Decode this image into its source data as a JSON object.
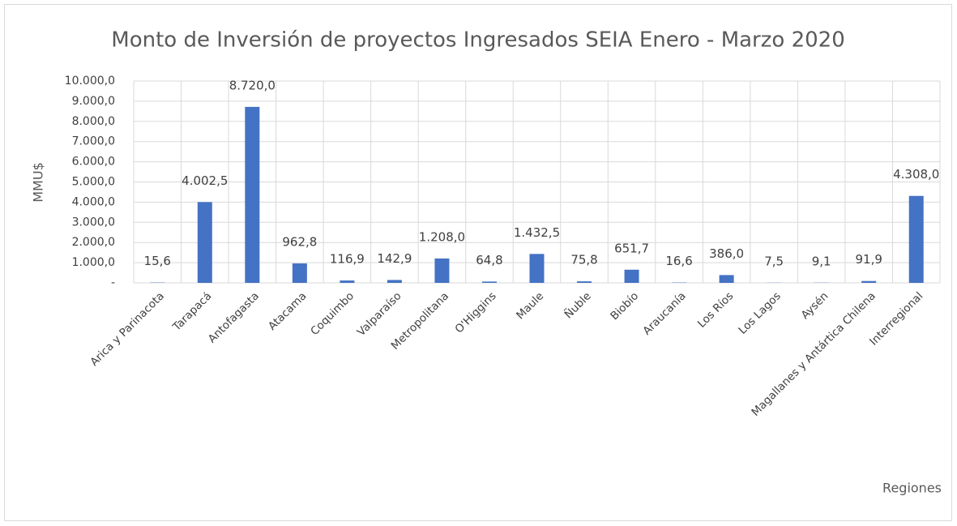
{
  "chart_data": {
    "type": "bar",
    "title": "Monto de Inversión de proyectos Ingresados SEIA Enero - Marzo 2020",
    "y_label": "MMU$",
    "x_label": "Regiones",
    "categories": [
      "Arica y Parinacota",
      "Tarapacá",
      "Antofagasta",
      "Atacama",
      "Coquimbo",
      "Valparaíso",
      "Metropolitana",
      "O'Higgins",
      "Maule",
      "Ñuble",
      "Biobío",
      "Araucanía",
      "Los Ríos",
      "Los Lagos",
      "Aysén",
      "Magallanes y Antártica Chilena",
      "Interregional"
    ],
    "values": [
      15.6,
      4002.5,
      8720.0,
      962.8,
      116.9,
      142.9,
      1208.0,
      64.8,
      1432.5,
      75.8,
      651.7,
      16.6,
      386.0,
      7.5,
      9.1,
      91.9,
      4308.0
    ],
    "value_labels": [
      "15,6",
      "4.002,5",
      "8.720,0",
      "962,8",
      "116,9",
      "142,9",
      "1.208,0",
      "64,8",
      "1.432,5",
      "75,8",
      "651,7",
      "16,6",
      "386,0",
      "7,5",
      "9,1",
      "91,9",
      "4.308,0"
    ],
    "color": "#4472c4",
    "ylim": [
      0,
      10000
    ],
    "yticks": [
      {
        "value": 0,
        "label": "-"
      },
      {
        "value": 1000,
        "label": "1.000,0"
      },
      {
        "value": 2000,
        "label": "2.000,0"
      },
      {
        "value": 3000,
        "label": "3.000,0"
      },
      {
        "value": 4000,
        "label": "4.000,0"
      },
      {
        "value": 5000,
        "label": "5.000,0"
      },
      {
        "value": 6000,
        "label": "6.000,0"
      },
      {
        "value": 7000,
        "label": "7.000,0"
      },
      {
        "value": 8000,
        "label": "8.000,0"
      },
      {
        "value": 9000,
        "label": "9.000,0"
      },
      {
        "value": 10000,
        "label": "10.000,0"
      }
    ],
    "grid": true
  }
}
